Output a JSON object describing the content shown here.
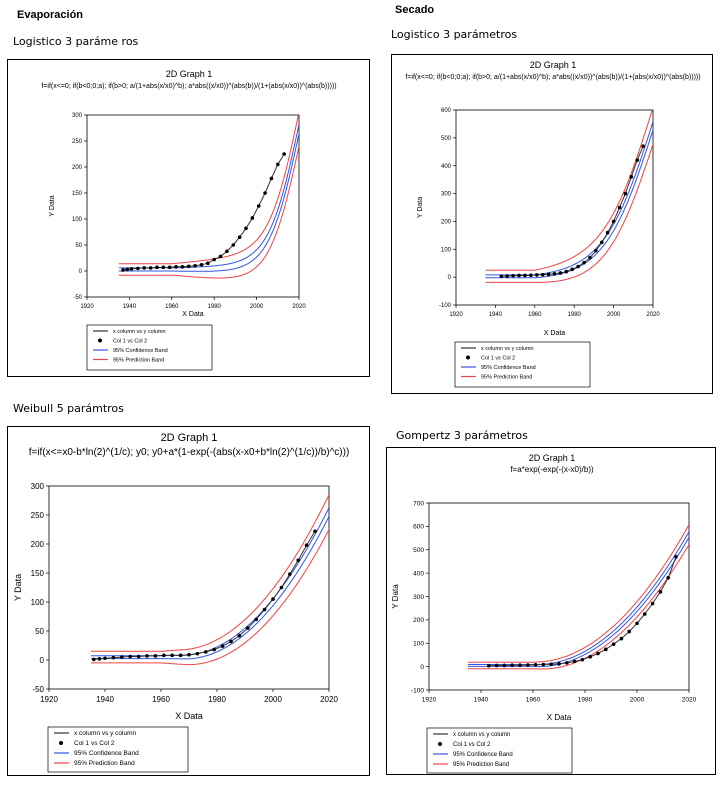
{
  "sections": {
    "evap": "Evaporación",
    "secado": "Secado"
  },
  "model_labels": {
    "p1": "Logistico 3 paráme ros",
    "p2": "Logistico 3 parámetros",
    "p3": "Weibull 5 parámtros",
    "p4": "Gompertz 3 parámetros"
  },
  "colors": {
    "data_line": "#333333",
    "points": "#000000",
    "confidence": "#3355dd",
    "prediction": "#ee4444"
  },
  "chart_data": [
    {
      "type": "scatter",
      "title": "2D Graph 1",
      "equation": "f=if(x<=0; if(b<0;0;a); if(b>0; a/(1+abs(x/x0)^b); a*abs((x/x0))^(abs(b))/(1+(abs(x/x0))^(abs(b)))))",
      "xlabel": "X Data",
      "ylabel": "Y Data",
      "xlim": [
        1920,
        2020
      ],
      "ylim": [
        -50,
        300
      ],
      "xticks": [
        1920,
        1940,
        1960,
        1980,
        2000,
        2020
      ],
      "yticks": [
        -50,
        0,
        50,
        100,
        150,
        200,
        250,
        300
      ],
      "model": "logistic",
      "params": {
        "a_end": 270,
        "k": 0.14,
        "x0": 2020,
        "band_c": 6,
        "band_p": 11
      },
      "points": {
        "x": [
          1937,
          1939,
          1941,
          1944,
          1947,
          1950,
          1953,
          1956,
          1959,
          1962,
          1965,
          1968,
          1971,
          1974,
          1977,
          1980,
          1983,
          1986,
          1989,
          1992,
          1995,
          1998,
          2001,
          2004,
          2007,
          2010,
          2013
        ],
        "y": [
          2,
          3,
          4,
          5,
          6,
          6,
          7,
          7,
          7,
          8,
          8,
          9,
          10,
          12,
          15,
          22,
          28,
          38,
          50,
          65,
          82,
          102,
          125,
          150,
          178,
          205,
          225
        ]
      },
      "legend": [
        "x column vs y column",
        "Col 1 vs Col 2",
        "95% Confidence Band",
        "95% Prediction Band"
      ],
      "legend_position": "bottom"
    },
    {
      "type": "scatter",
      "title": "2D Graph 1",
      "equation": "f=if(x<=0; if(b<0;0;a); if(b>0; a/(1+abs(x/x0)^b); a*abs((x/x0))^(abs(b))/(1+(abs(x/x0))^(abs(b)))))",
      "xlabel": "X Data",
      "ylabel": "Y Data",
      "xlim": [
        1920,
        2020
      ],
      "ylim": [
        -100,
        600
      ],
      "xticks": [
        1920,
        1940,
        1960,
        1980,
        2000,
        2020
      ],
      "yticks": [
        -100,
        0,
        100,
        200,
        300,
        400,
        500,
        600
      ],
      "model": "logistic",
      "params": {
        "a_end": 540,
        "k": 0.08,
        "x0": 2020,
        "band_c": 10,
        "band_p": 22
      },
      "points": {
        "x": [
          1943,
          1946,
          1949,
          1952,
          1955,
          1958,
          1961,
          1964,
          1967,
          1970,
          1973,
          1976,
          1979,
          1982,
          1985,
          1988,
          1991,
          1994,
          1997,
          2000,
          2003,
          2006,
          2009,
          2012,
          2015
        ],
        "y": [
          3,
          4,
          5,
          6,
          6,
          7,
          8,
          9,
          10,
          12,
          15,
          20,
          28,
          38,
          52,
          70,
          95,
          125,
          160,
          200,
          250,
          300,
          360,
          420,
          470
        ]
      },
      "legend": [
        "x column vs y column",
        "Col 1 vs Col 2",
        "95% Confidence Band",
        "95% Prediction Band"
      ],
      "legend_position": "bottom"
    },
    {
      "type": "scatter",
      "title": "2D Graph 1",
      "equation": "f=if(x<=x0-b*ln(2)^(1/c); y0; y0+a*(1-exp(-(abs(x-x0+b*ln(2)^(1/c))/b)^c)))",
      "xlabel": "X Data",
      "ylabel": "Y Data",
      "xlim": [
        1920,
        2020
      ],
      "ylim": [
        -50,
        300
      ],
      "xticks": [
        1920,
        1940,
        1960,
        1980,
        2000,
        2020
      ],
      "yticks": [
        -50,
        0,
        50,
        100,
        150,
        200,
        250,
        300
      ],
      "model": "weibull",
      "params": {
        "y0": 5,
        "a_end": 255,
        "x_start": 1968,
        "p": 2,
        "band_c": 5,
        "band_p": 10
      },
      "points": {
        "x": [
          1936,
          1938,
          1940,
          1943,
          1946,
          1949,
          1952,
          1955,
          1958,
          1961,
          1964,
          1967,
          1970,
          1973,
          1976,
          1979,
          1982,
          1985,
          1988,
          1991,
          1994,
          1997,
          2000,
          2003,
          2006,
          2009,
          2012,
          2015
        ],
        "y": [
          1,
          2,
          3,
          4,
          5,
          6,
          6,
          7,
          7,
          8,
          8,
          8,
          9,
          11,
          14,
          18,
          24,
          32,
          42,
          55,
          70,
          87,
          105,
          125,
          148,
          172,
          198,
          222
        ]
      },
      "legend": [
        "x column vs y column",
        "Col 1 vs Col 2",
        "95% Confidence Band",
        "95% Prediction Band"
      ],
      "legend_position": "bottom"
    },
    {
      "type": "scatter",
      "title": "2D Graph 1",
      "equation": "f=a*exp(-exp(-(x-x0)/b))",
      "xlabel": "X Data",
      "ylabel": "Y Data",
      "xlim": [
        1920,
        2020
      ],
      "ylim": [
        -100,
        700
      ],
      "xticks": [
        1920,
        1940,
        1960,
        1980,
        2000,
        2020
      ],
      "yticks": [
        -100,
        0,
        100,
        200,
        300,
        400,
        500,
        600,
        700
      ],
      "model": "weibull",
      "params": {
        "y0": 5,
        "a_end": 565,
        "x_start": 1962,
        "p": 2,
        "band_c": 8,
        "band_p": 14
      },
      "points": {
        "x": [
          1943,
          1946,
          1949,
          1952,
          1955,
          1958,
          1961,
          1964,
          1967,
          1970,
          1973,
          1976,
          1979,
          1982,
          1985,
          1988,
          1991,
          1994,
          1997,
          2000,
          2003,
          2006,
          2009,
          2012,
          2015
        ],
        "y": [
          4,
          5,
          5,
          6,
          6,
          7,
          8,
          9,
          10,
          12,
          16,
          22,
          30,
          42,
          56,
          74,
          96,
          120,
          150,
          185,
          225,
          270,
          320,
          380,
          470
        ]
      },
      "legend": [
        "x column vs y column",
        "Col 1 vs Col 2",
        "95% Confidence Band",
        "95% Prediction Band"
      ],
      "legend_position": "bottom"
    }
  ]
}
